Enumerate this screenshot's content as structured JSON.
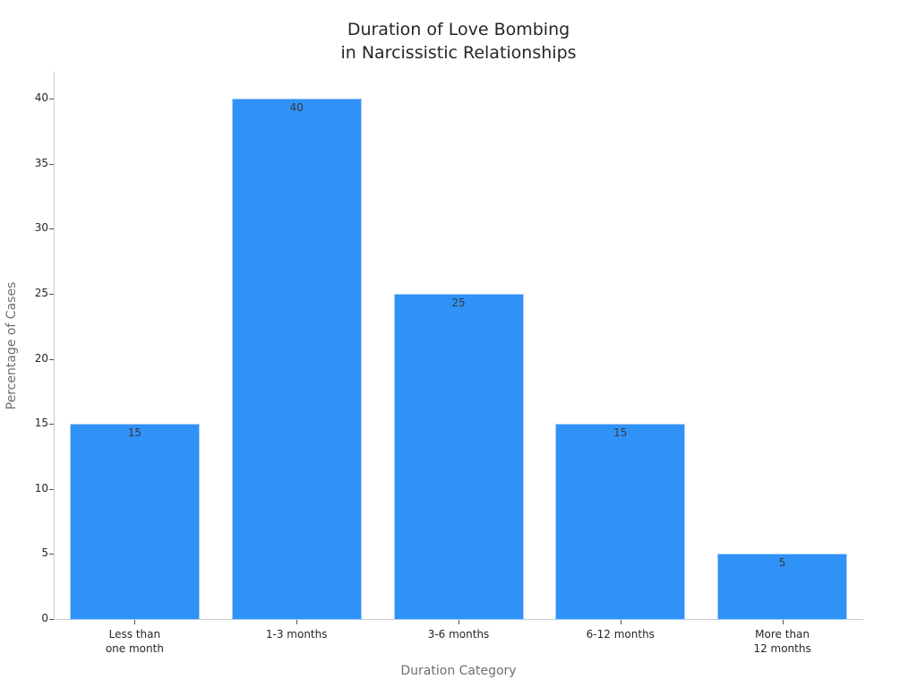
{
  "chart_data": {
    "type": "bar",
    "title": "Duration of Love Bombing\nin Narcissistic Relationships",
    "title_lines": [
      "Duration of Love Bombing",
      "in Narcissistic Relationships"
    ],
    "xlabel": "Duration Category",
    "ylabel": "Percentage of Cases",
    "categories": [
      "Less than\none month",
      "1-3 months",
      "3-6 months",
      "6-12 months",
      "More than\n12 months"
    ],
    "values": [
      15,
      40,
      25,
      15,
      5
    ],
    "value_labels": [
      "15",
      "40",
      "25",
      "15",
      "5"
    ],
    "yticks": [
      "0",
      "5",
      "10",
      "15",
      "20",
      "25",
      "30",
      "35",
      "40"
    ],
    "ylim": [
      0,
      42
    ],
    "grid": false,
    "legend": null,
    "bar_color": "#2f92f7"
  }
}
